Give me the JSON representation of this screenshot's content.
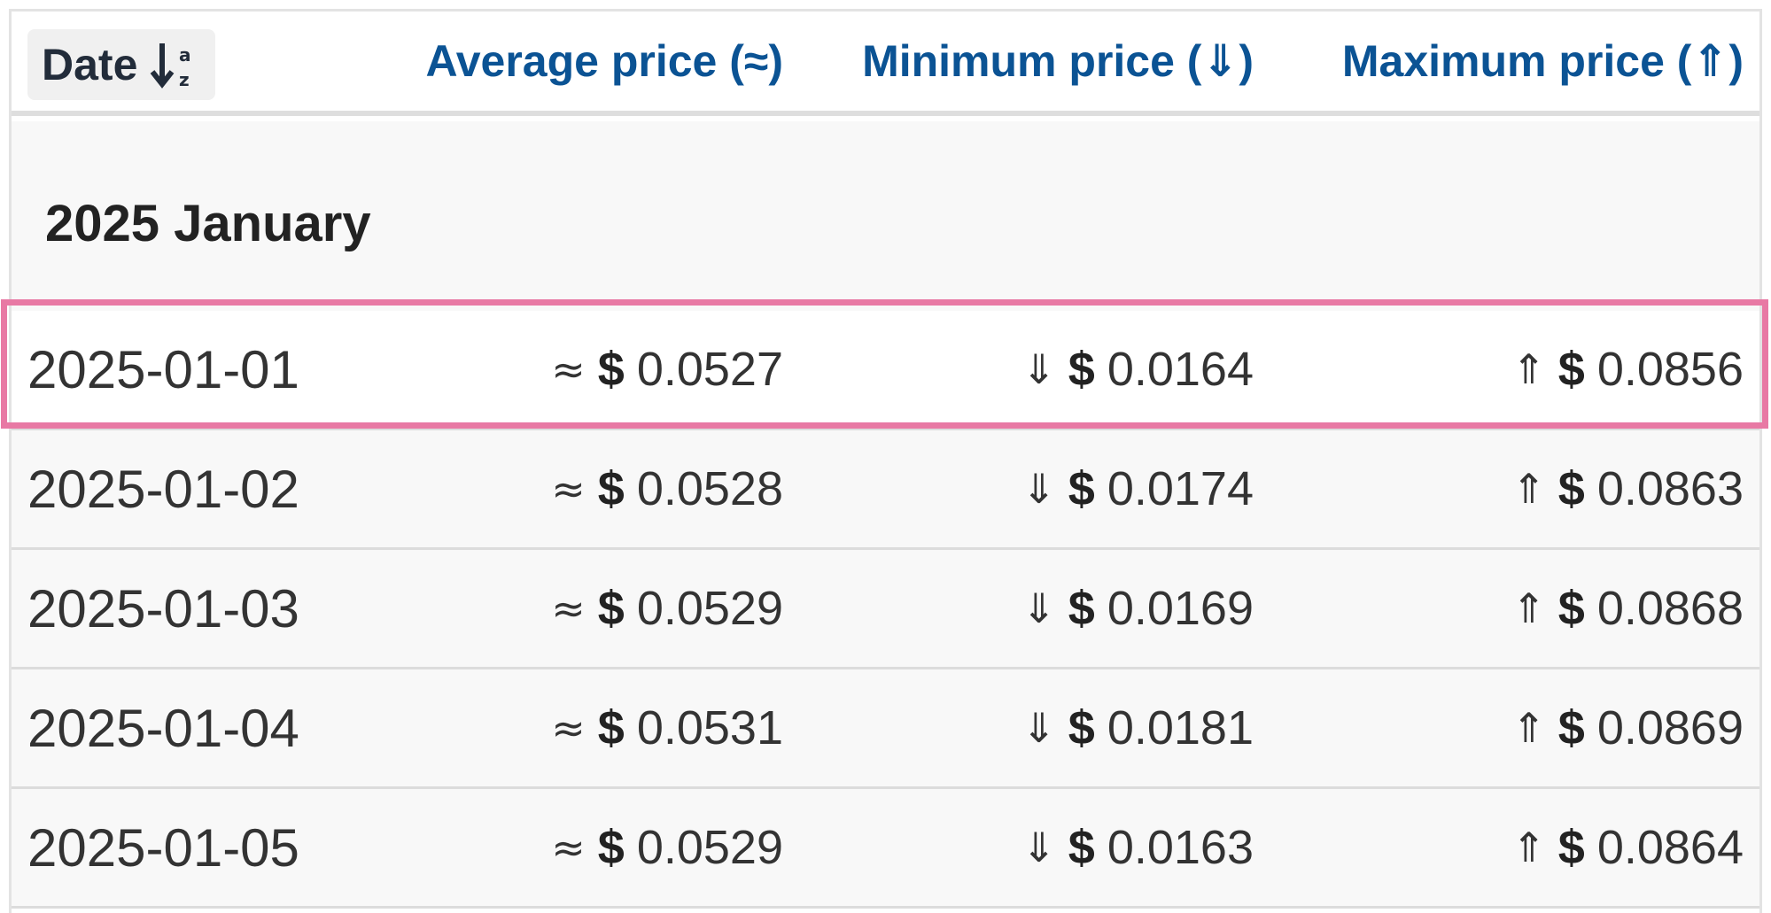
{
  "header": {
    "date_label": "Date",
    "avg_label": "Average price (≈)",
    "min_label": "Minimum price (⇓)",
    "max_label": "Maximum price (⇑)",
    "sort_icon": "sort-alpha-down-icon"
  },
  "group": {
    "title": "2025 January"
  },
  "symbols": {
    "avg": "≈",
    "min": "⇓",
    "max": "⇑",
    "currency": "$"
  },
  "rows": [
    {
      "date": "2025-01-01",
      "avg": "0.0527",
      "min": "0.0164",
      "max": "0.0856"
    },
    {
      "date": "2025-01-02",
      "avg": "0.0528",
      "min": "0.0174",
      "max": "0.0863"
    },
    {
      "date": "2025-01-03",
      "avg": "0.0529",
      "min": "0.0169",
      "max": "0.0868"
    },
    {
      "date": "2025-01-04",
      "avg": "0.0531",
      "min": "0.0181",
      "max": "0.0869"
    },
    {
      "date": "2025-01-05",
      "avg": "0.0529",
      "min": "0.0163",
      "max": "0.0864"
    }
  ],
  "colors": {
    "header_link": "#0b5394",
    "highlight_border": "#e879a4",
    "row_bg": "#f8f8f8"
  }
}
